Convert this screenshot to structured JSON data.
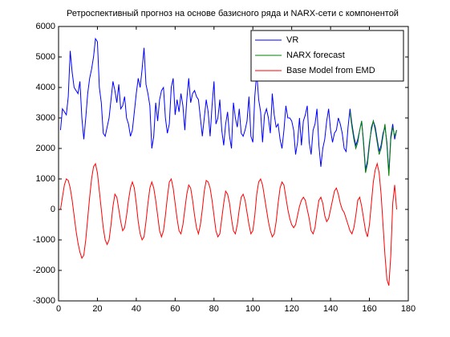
{
  "chart_data": {
    "type": "line",
    "title": "Ретроспективный прогноз на основе базисного ряда и NARX-сети с компонентой",
    "x": [
      1,
      2,
      3,
      4,
      5,
      6,
      7,
      8,
      9,
      10,
      11,
      12,
      13,
      14,
      15,
      16,
      17,
      18,
      19,
      20,
      21,
      22,
      23,
      24,
      25,
      26,
      27,
      28,
      29,
      30,
      31,
      32,
      33,
      34,
      35,
      36,
      37,
      38,
      39,
      40,
      41,
      42,
      43,
      44,
      45,
      46,
      47,
      48,
      49,
      50,
      51,
      52,
      53,
      54,
      55,
      56,
      57,
      58,
      59,
      60,
      61,
      62,
      63,
      64,
      65,
      66,
      67,
      68,
      69,
      70,
      71,
      72,
      73,
      74,
      75,
      76,
      77,
      78,
      79,
      80,
      81,
      82,
      83,
      84,
      85,
      86,
      87,
      88,
      89,
      90,
      91,
      92,
      93,
      94,
      95,
      96,
      97,
      98,
      99,
      100,
      101,
      102,
      103,
      104,
      105,
      106,
      107,
      108,
      109,
      110,
      111,
      112,
      113,
      114,
      115,
      116,
      117,
      118,
      119,
      120,
      121,
      122,
      123,
      124,
      125,
      126,
      127,
      128,
      129,
      130,
      131,
      132,
      133,
      134,
      135,
      136,
      137,
      138,
      139,
      140,
      141,
      142,
      143,
      144,
      145,
      146,
      147,
      148,
      149,
      150,
      151,
      152,
      153,
      154,
      155,
      156,
      157,
      158,
      159,
      160,
      161,
      162,
      163,
      164,
      165,
      166,
      167,
      168,
      169,
      170,
      171,
      172,
      173,
      174
    ],
    "series": [
      {
        "name": "VR",
        "color": "#0000ff",
        "values": [
          2600,
          3300,
          3200,
          3100,
          3700,
          5200,
          4500,
          4000,
          3900,
          3800,
          4200,
          3000,
          2300,
          3000,
          3800,
          4300,
          4600,
          5000,
          5600,
          5500,
          4000,
          3500,
          2500,
          2400,
          2700,
          3000,
          3600,
          4200,
          3900,
          3500,
          4100,
          3300,
          3400,
          3700,
          3000,
          2800,
          2400,
          2600,
          3200,
          3800,
          4300,
          4000,
          4600,
          5300,
          4100,
          3800,
          3400,
          2000,
          2400,
          3500,
          2900,
          3600,
          3900,
          4000,
          3000,
          2500,
          2800,
          4000,
          4300,
          3100,
          3600,
          3200,
          3800,
          3400,
          2600,
          3600,
          4300,
          3500,
          3800,
          3900,
          3700,
          3600,
          3000,
          2400,
          3000,
          3600,
          3200,
          2400,
          3400,
          4200,
          2800,
          3000,
          3600,
          2600,
          2100,
          2800,
          3200,
          2400,
          2000,
          3500,
          3000,
          2700,
          3300,
          2500,
          2400,
          2600,
          2900,
          3700,
          2400,
          2200,
          3700,
          4500,
          3600,
          3200,
          2200,
          3100,
          3300,
          3000,
          2500,
          3800,
          3100,
          2700,
          2800,
          2300,
          2000,
          2600,
          3400,
          3000,
          3000,
          2900,
          2600,
          1800,
          2200,
          3000,
          2100,
          2900,
          3100,
          3400,
          2200,
          1800,
          2600,
          2800,
          3300,
          2100,
          1400,
          2000,
          2300,
          2900,
          3300,
          2600,
          2200,
          2500,
          2600,
          3000,
          2800,
          2500,
          2000,
          1900,
          2700,
          3300,
          2800,
          2400,
          2100,
          2300,
          2600,
          2900,
          2200,
          1300,
          1600,
          2200,
          2600,
          2900,
          2700,
          2300,
          1900,
          2100,
          2500,
          2700,
          2200,
          1200,
          2400,
          2800,
          2300,
          2600
        ]
      },
      {
        "name": "NARX forecast",
        "color": "#008000",
        "x": [
          150,
          151,
          152,
          153,
          154,
          155,
          156,
          157,
          158,
          159,
          160,
          161,
          162,
          163,
          164,
          165,
          166,
          167,
          168,
          169,
          170,
          171,
          172,
          173,
          174
        ],
        "values": [
          3200,
          2700,
          2300,
          2000,
          2200,
          2600,
          2900,
          2100,
          1200,
          1500,
          2100,
          2700,
          2900,
          2600,
          2200,
          1800,
          2000,
          2400,
          2800,
          2100,
          1100,
          2300,
          2700,
          2400,
          2600
        ]
      },
      {
        "name": "Base Model from EMD",
        "color": "#ff0000",
        "values": [
          0,
          400,
          800,
          1000,
          950,
          700,
          300,
          -200,
          -700,
          -1100,
          -1400,
          -1600,
          -1500,
          -1000,
          -300,
          400,
          1000,
          1400,
          1500,
          1200,
          600,
          0,
          -600,
          -1000,
          -1150,
          -1000,
          -500,
          100,
          500,
          400,
          0,
          -400,
          -700,
          -600,
          -200,
          300,
          700,
          900,
          700,
          200,
          -400,
          -800,
          -1000,
          -900,
          -400,
          200,
          700,
          900,
          700,
          300,
          -200,
          -700,
          -900,
          -700,
          -200,
          400,
          900,
          1000,
          700,
          200,
          -300,
          -700,
          -800,
          -500,
          0,
          500,
          800,
          700,
          300,
          -200,
          -600,
          -800,
          -500,
          0,
          600,
          950,
          900,
          700,
          300,
          -200,
          -700,
          -900,
          -800,
          -300,
          200,
          600,
          500,
          200,
          -300,
          -700,
          -800,
          -500,
          0,
          400,
          500,
          300,
          -100,
          -500,
          -800,
          -700,
          -200,
          500,
          900,
          1000,
          800,
          400,
          0,
          -400,
          -700,
          -900,
          -800,
          -400,
          200,
          700,
          900,
          800,
          400,
          0,
          -300,
          -500,
          -600,
          -500,
          -200,
          100,
          300,
          400,
          300,
          0,
          -300,
          -700,
          -800,
          -600,
          -100,
          300,
          400,
          200,
          -200,
          -400,
          -300,
          0,
          300,
          600,
          700,
          500,
          200,
          0,
          -100,
          -300,
          -500,
          -700,
          -800,
          -600,
          -200,
          300,
          400,
          100,
          -300,
          -700,
          -900,
          -500,
          200,
          900,
          1300,
          1500,
          1200,
          500,
          -500,
          -1500,
          -2300,
          -2500,
          -1500,
          200,
          800,
          0
        ]
      }
    ],
    "xlim": [
      0,
      180
    ],
    "xticks": [
      0,
      20,
      40,
      60,
      80,
      100,
      120,
      140,
      160,
      180
    ],
    "ylim": [
      -3000,
      6000
    ],
    "yticks": [
      -3000,
      -2000,
      -1000,
      0,
      1000,
      2000,
      3000,
      4000,
      5000,
      6000
    ],
    "legend": "upper right",
    "grid": false
  }
}
